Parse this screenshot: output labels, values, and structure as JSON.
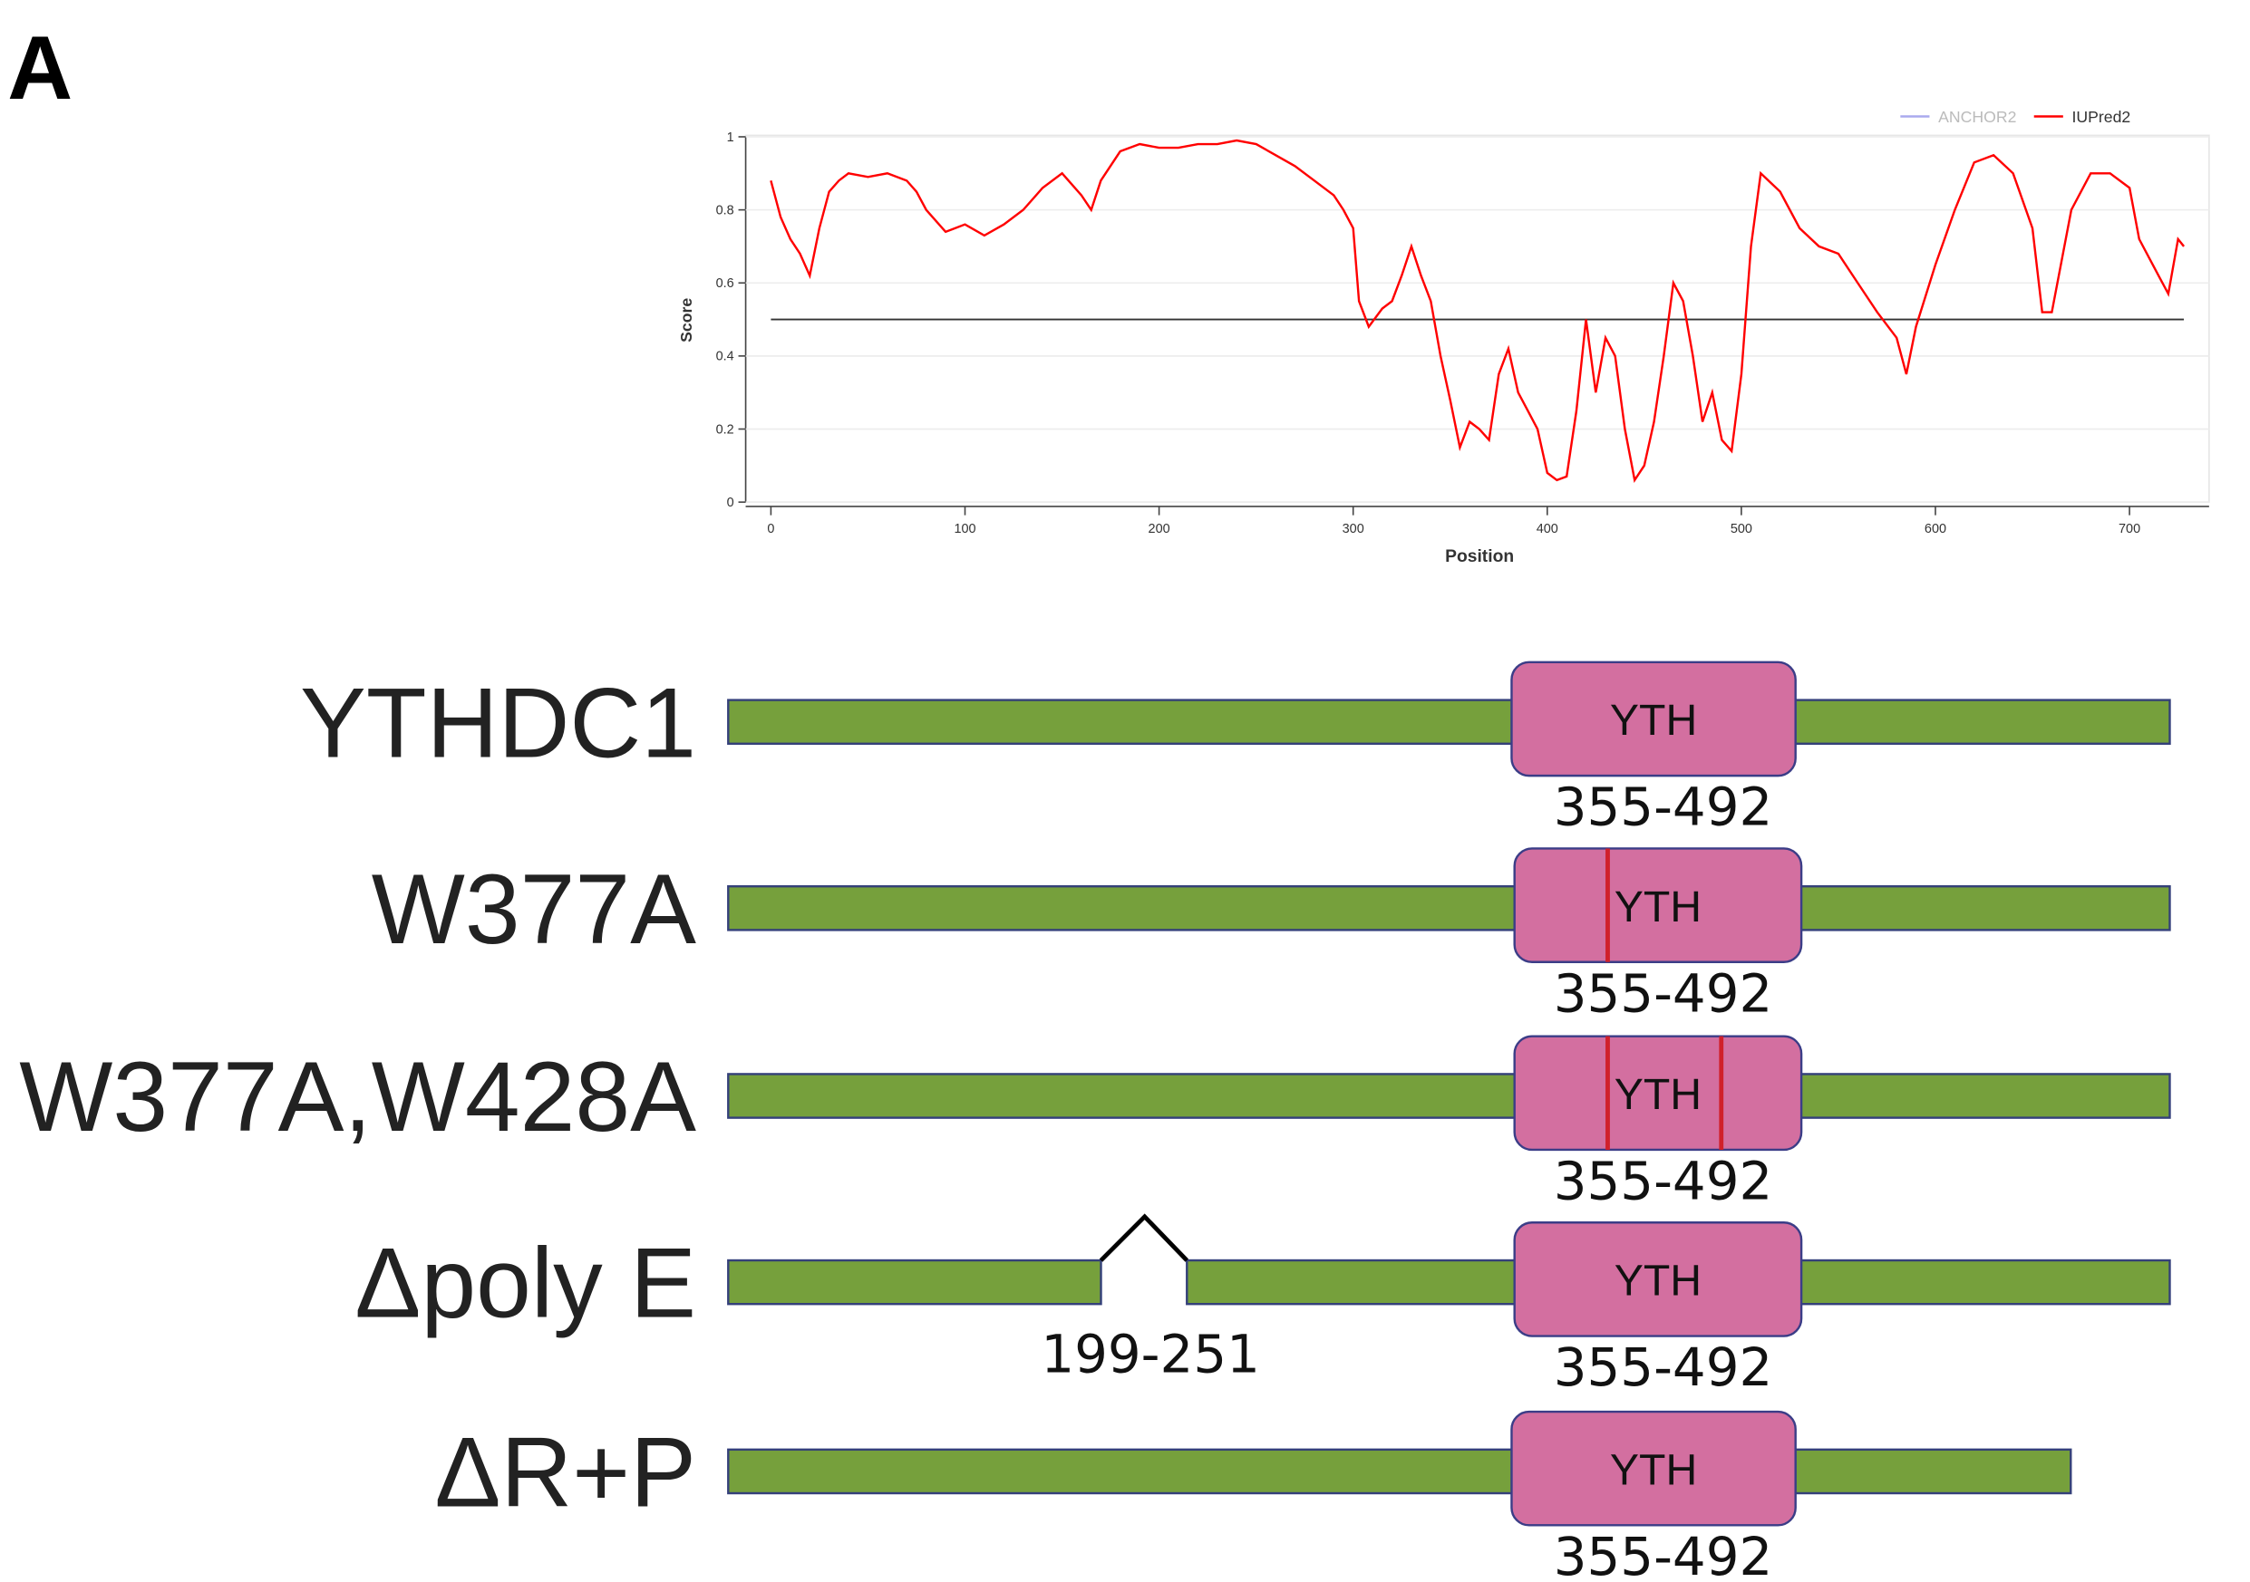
{
  "panel_label": "A",
  "chart_data": {
    "type": "line",
    "xlabel": "Position",
    "ylabel": "Score",
    "x": [
      0,
      5,
      10,
      15,
      20,
      25,
      30,
      35,
      40,
      50,
      60,
      70,
      75,
      80,
      90,
      100,
      110,
      120,
      130,
      140,
      150,
      160,
      165,
      170,
      180,
      190,
      200,
      210,
      220,
      230,
      240,
      250,
      260,
      270,
      280,
      290,
      295,
      300,
      303,
      308,
      315,
      320,
      325,
      330,
      335,
      340,
      345,
      350,
      355,
      360,
      365,
      370,
      375,
      380,
      385,
      390,
      395,
      400,
      405,
      410,
      415,
      420,
      425,
      430,
      435,
      440,
      445,
      450,
      455,
      460,
      465,
      470,
      475,
      480,
      485,
      490,
      495,
      500,
      505,
      510,
      520,
      530,
      540,
      550,
      560,
      570,
      580,
      585,
      590,
      600,
      610,
      620,
      630,
      640,
      650,
      655,
      660,
      670,
      680,
      690,
      700,
      705,
      715,
      720,
      725,
      728
    ],
    "series": [
      {
        "name": "IUPred2",
        "color": "#ff0000",
        "values": [
          0.88,
          0.78,
          0.72,
          0.68,
          0.62,
          0.75,
          0.85,
          0.88,
          0.9,
          0.89,
          0.9,
          0.88,
          0.85,
          0.8,
          0.74,
          0.76,
          0.73,
          0.76,
          0.8,
          0.86,
          0.9,
          0.84,
          0.8,
          0.88,
          0.96,
          0.98,
          0.97,
          0.97,
          0.98,
          0.98,
          0.99,
          0.98,
          0.95,
          0.92,
          0.88,
          0.84,
          0.8,
          0.75,
          0.55,
          0.48,
          0.53,
          0.55,
          0.62,
          0.7,
          0.62,
          0.55,
          0.4,
          0.28,
          0.15,
          0.22,
          0.2,
          0.17,
          0.35,
          0.42,
          0.3,
          0.25,
          0.2,
          0.08,
          0.06,
          0.07,
          0.25,
          0.5,
          0.3,
          0.45,
          0.4,
          0.2,
          0.06,
          0.1,
          0.22,
          0.4,
          0.6,
          0.55,
          0.4,
          0.22,
          0.3,
          0.17,
          0.14,
          0.35,
          0.7,
          0.9,
          0.85,
          0.75,
          0.7,
          0.68,
          0.6,
          0.52,
          0.45,
          0.35,
          0.48,
          0.65,
          0.8,
          0.93,
          0.95,
          0.9,
          0.75,
          0.52,
          0.52,
          0.8,
          0.9,
          0.9,
          0.86,
          0.72,
          0.62,
          0.57,
          0.72,
          0.7
        ]
      }
    ],
    "legend_only": [
      {
        "name": "ANCHOR2",
        "color": "#aaaaee"
      }
    ],
    "threshold": 0.5,
    "xlim": [
      -13,
      741
    ],
    "ylim": [
      0,
      1
    ],
    "xticks": [
      0,
      100,
      200,
      300,
      400,
      500,
      600,
      700
    ],
    "yticks": [
      0,
      0.2,
      0.4,
      0.6,
      0.8,
      1
    ],
    "grid": true,
    "legend": "top-right"
  },
  "diagram": {
    "rows": [
      {
        "label": "YTHDC1",
        "domain": "YTH",
        "range": "355-492"
      },
      {
        "label": "W377A",
        "domain": "YTH",
        "range": "355-492"
      },
      {
        "label": "W377A,W428A",
        "domain": "YTH",
        "range": "355-492"
      },
      {
        "label": "Δpoly E",
        "domain": "YTH",
        "range": "355-492",
        "deletion": "199-251"
      },
      {
        "label": "ΔR+P",
        "domain": "YTH",
        "range": "355-492"
      }
    ]
  }
}
